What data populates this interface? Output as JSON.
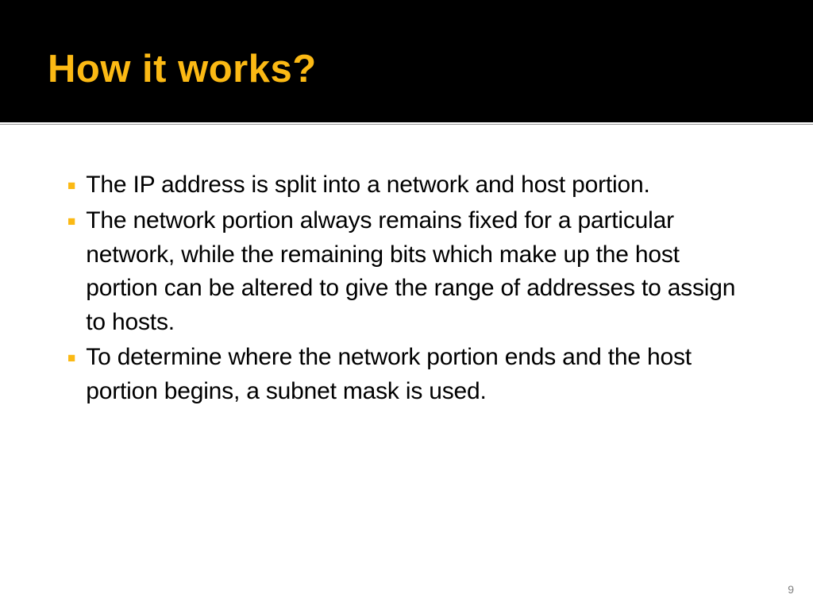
{
  "slide": {
    "title": "How it works?",
    "bullets": [
      "The IP address is split into a network and host portion.",
      "The network portion always remains fixed for a particular network, while the remaining bits which make up the host portion can be altered to give the range of addresses to assign to hosts.",
      "To determine where the network portion ends and the host portion begins, a subnet mask is used."
    ],
    "page_number": "9"
  },
  "styling": {
    "title_color": "#fbb914",
    "title_fontsize": 49,
    "header_background": "#000000",
    "body_background": "#ffffff",
    "bullet_marker_color": "#fbb914",
    "body_text_color": "#000000",
    "body_fontsize": 30,
    "page_number_color": "#808080"
  }
}
